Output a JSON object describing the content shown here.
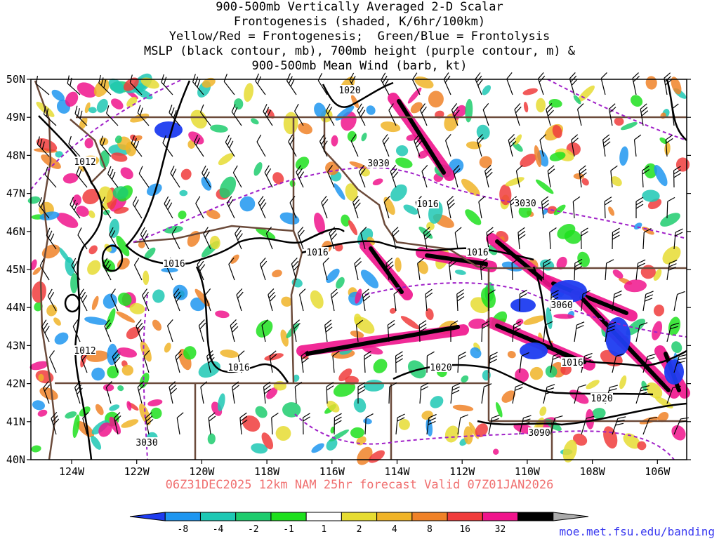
{
  "title_lines": [
    "900-500mb Vertically Averaged 2-D Scalar",
    "Frontogenesis (shaded, K/6hr/100km)",
    "Yellow/Red = Frontogenesis;  Green/Blue = Frontolysis",
    "MSLP (black contour, mb), 700mb height (purple contour, m) &",
    "900-500mb Mean Wind (barb, kt)"
  ],
  "map": {
    "lat_ticks": [
      "50N",
      "49N",
      "48N",
      "47N",
      "46N",
      "45N",
      "44N",
      "43N",
      "42N",
      "41N",
      "40N"
    ],
    "lon_ticks": [
      "124W",
      "122W",
      "120W",
      "118W",
      "116W",
      "114W",
      "112W",
      "110W",
      "108W",
      "106W"
    ],
    "mslp_labels": [
      "1020",
      "1012",
      "1016",
      "1016",
      "1016",
      "1016",
      "1012",
      "1016",
      "1020",
      "1016",
      "1020"
    ],
    "height_labels": [
      "3030",
      "3030",
      "3060",
      "3030",
      "3090"
    ]
  },
  "forecast_line": "06Z31DEC2025 12km NAM 25hr forecast Valid 07Z01JAN2026",
  "colorbar": {
    "ticks": [
      "-8",
      "-4",
      "-2",
      "-1",
      "1",
      "2",
      "4",
      "8",
      "16",
      "32"
    ],
    "colors": [
      "#1e3cf0",
      "#1e96f0",
      "#1ec8b4",
      "#1ecc6e",
      "#1ee01e",
      "#ffffff",
      "#e6dc32",
      "#f0b428",
      "#f08228",
      "#f03c3c",
      "#f0148c",
      "#000000",
      "#aaaaaa"
    ]
  },
  "source": "moe.met.fsu.edu/banding"
}
